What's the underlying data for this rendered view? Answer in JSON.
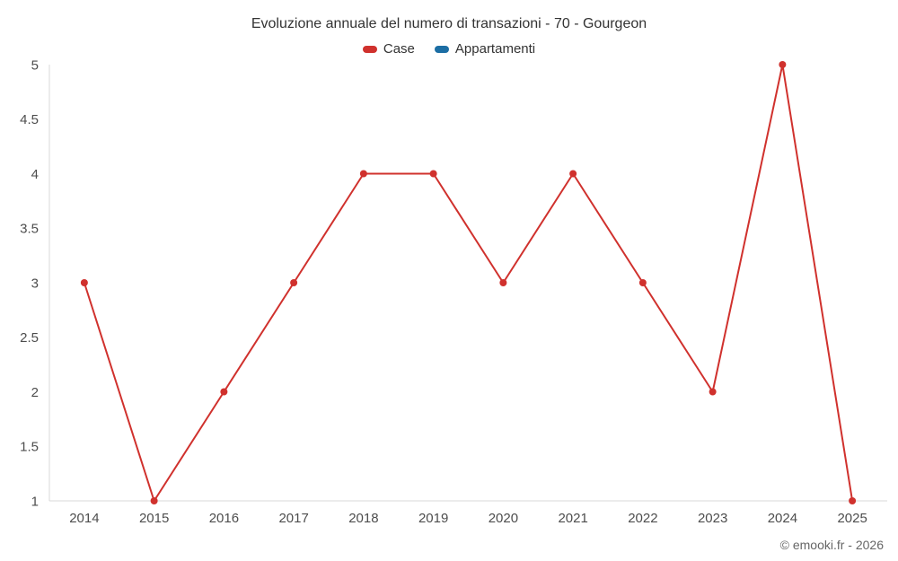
{
  "chart": {
    "title": "Evoluzione annuale del numero di transazioni - 70 - Gourgeon",
    "watermark": "© emooki.fr - 2026"
  },
  "legend": {
    "items": [
      {
        "label": "Case",
        "color": "#d0312d"
      },
      {
        "label": "Appartamenti",
        "color": "#1c6ea4"
      }
    ]
  },
  "chart_data": {
    "type": "line",
    "title": "Evoluzione annuale del numero di transazioni - 70 - Gourgeon",
    "categories": [
      "2014",
      "2015",
      "2016",
      "2017",
      "2018",
      "2019",
      "2020",
      "2021",
      "2022",
      "2023",
      "2024",
      "2025"
    ],
    "series": [
      {
        "name": "Case",
        "color": "#d0312d",
        "values": [
          3,
          1,
          2,
          3,
          4,
          4,
          3,
          4,
          3,
          2,
          5,
          1
        ]
      },
      {
        "name": "Appartamenti",
        "color": "#1c6ea4",
        "values": []
      }
    ],
    "xlabel": "",
    "ylabel": "",
    "ylim": [
      1,
      5
    ],
    "yticks": [
      1,
      1.5,
      2,
      2.5,
      3,
      3.5,
      4,
      4.5,
      5
    ],
    "grid": false,
    "legend_position": "top",
    "marker": "circle",
    "annotations": [
      "© emooki.fr - 2026"
    ]
  }
}
